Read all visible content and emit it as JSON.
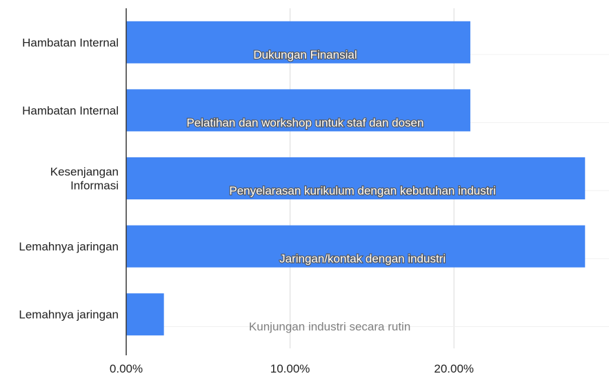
{
  "chart_data": {
    "type": "bar",
    "orientation": "horizontal",
    "categories": [
      "Hambatan Internal",
      "Hambatan Internal",
      "Kesenjangan Informasi",
      "Lemahnya jaringan",
      "Lemahnya jaringan"
    ],
    "series": [
      {
        "values": [
          0.21,
          0.21,
          0.28,
          0.28,
          0.023
        ],
        "color": "#4285f4"
      }
    ],
    "bar_labels": [
      "Dukungan Finansial",
      "Pelatihan dan workshop untuk staf dan dosen",
      "Penyelarasan kurikulum dengan kebutuhan industri",
      "Jaringan/kontak dengan industri",
      "Kunjungan industri secara rutin"
    ],
    "x_ticks": [
      "0.00%",
      "10.00%",
      "20.00%"
    ],
    "x_tick_values": [
      0,
      0.1,
      0.2
    ],
    "xlim": [
      0,
      0.297
    ],
    "title": "",
    "xlabel": "",
    "ylabel": "",
    "grid": true,
    "legend": "none"
  }
}
